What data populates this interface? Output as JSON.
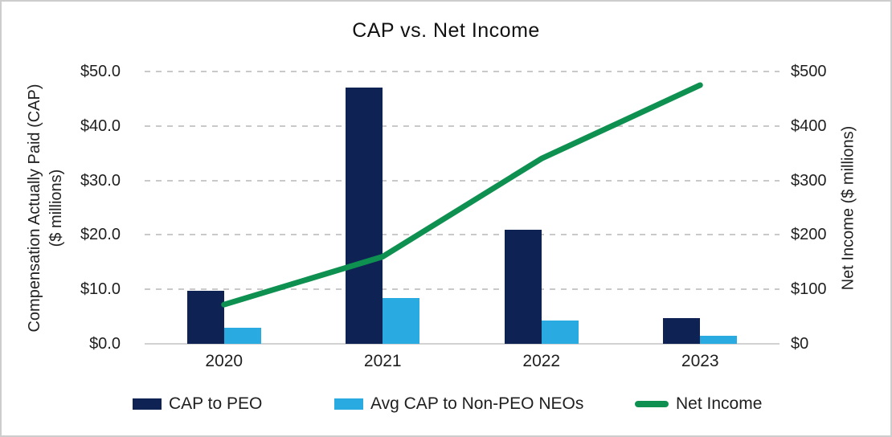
{
  "chart_data": {
    "type": "combo",
    "title": "CAP vs. Net Income",
    "categories": [
      "2020",
      "2021",
      "2022",
      "2023"
    ],
    "series": [
      {
        "name": "CAP to PEO",
        "type": "bar",
        "axis": "left",
        "color": "#0e2254",
        "values": [
          9.7,
          47.0,
          21.0,
          4.7
        ]
      },
      {
        "name": "Avg CAP to Non-PEO NEOs",
        "type": "bar",
        "axis": "left",
        "color": "#29abe2",
        "values": [
          3.0,
          8.4,
          4.3,
          1.5
        ]
      },
      {
        "name": "Net Income",
        "type": "line",
        "axis": "right",
        "color": "#0e9150",
        "values": [
          72,
          160,
          340,
          475
        ]
      }
    ],
    "left_axis": {
      "title_line1": "Compensation Actually Paid (CAP)",
      "title_line2": "($ millions)",
      "min": 0,
      "max": 50,
      "tick_labels": [
        "$50.0",
        "$40.0",
        "$30.0",
        "$20.0",
        "$10.0",
        "$0.0"
      ]
    },
    "right_axis": {
      "title": "Net Income ($ millions)",
      "min": 0,
      "max": 500,
      "tick_labels": [
        "$500",
        "$400",
        "$300",
        "$200",
        "$100",
        "$0"
      ]
    },
    "grid": "dashed horizontal gridlines",
    "legend_position": "bottom",
    "colors": {
      "grid": "#c9c9c9",
      "axis_baseline": "#d2d2d2",
      "text": "#1f1f1f",
      "background": "#ffffff",
      "border": "#cdcdcd"
    }
  }
}
